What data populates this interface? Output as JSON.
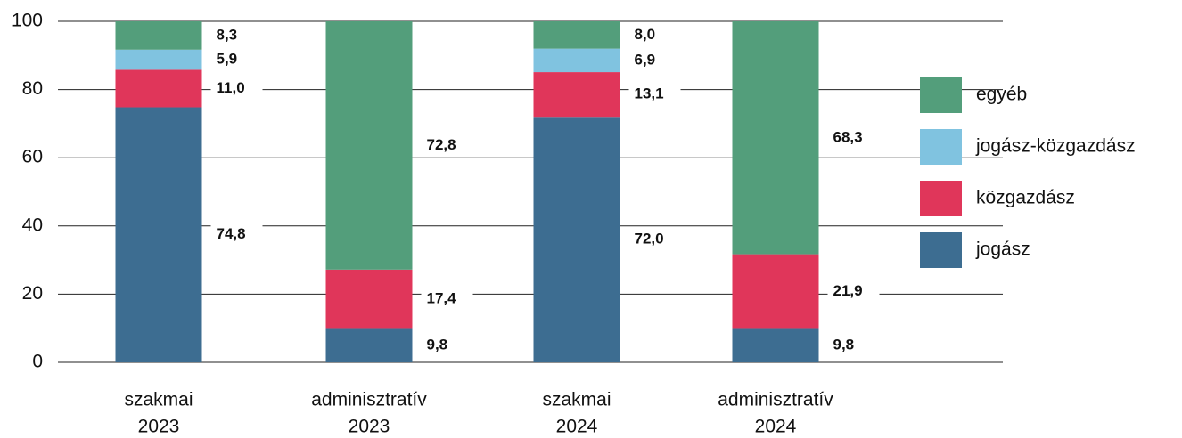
{
  "chart_data": {
    "type": "stacked_bar",
    "categories": [
      [
        "szakmai",
        "2023"
      ],
      [
        "adminisztratív",
        "2023"
      ],
      [
        "szakmai",
        "2024"
      ],
      [
        "adminisztratív",
        "2024"
      ]
    ],
    "series": [
      {
        "name": "jogász",
        "color": "#3d6d91",
        "values": [
          74.8,
          9.8,
          72.0,
          9.8
        ],
        "value_labels": [
          "74,8",
          "9,8",
          "72,0",
          "9,8"
        ]
      },
      {
        "name": "közgazdász",
        "color": "#e0365a",
        "values": [
          11.0,
          17.4,
          13.1,
          21.9
        ],
        "value_labels": [
          "11,0",
          "17,4",
          "13,1",
          "21,9"
        ]
      },
      {
        "name": "jogász-közgazdász",
        "color": "#80c3e0",
        "values": [
          5.9,
          null,
          6.9,
          null
        ],
        "value_labels": [
          "5,9",
          null,
          "6,9",
          null
        ]
      },
      {
        "name": "egyéb",
        "color": "#539e7b",
        "values": [
          8.3,
          72.8,
          8.0,
          68.3
        ],
        "value_labels": [
          "8,3",
          "72,8",
          "8,0",
          "68,3"
        ]
      }
    ],
    "ylim": [
      0,
      100
    ],
    "yticks": [
      0,
      20,
      40,
      60,
      80,
      100
    ],
    "grid": true,
    "legend": "right"
  }
}
